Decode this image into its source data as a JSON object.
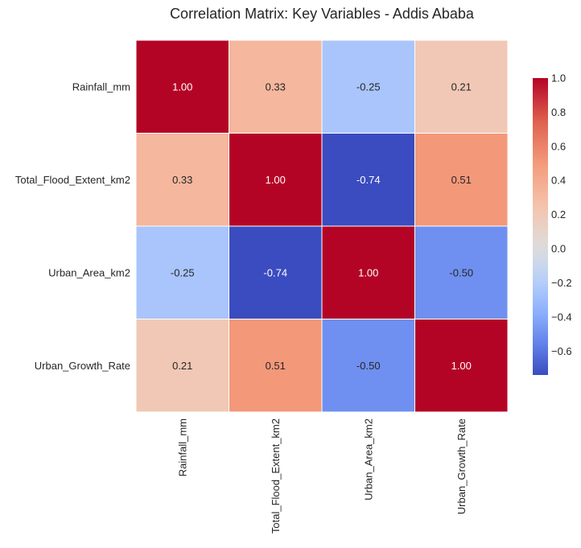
{
  "chart_data": {
    "type": "heatmap",
    "title": "Correlation Matrix: Key Variables - Addis Ababa",
    "row_labels": [
      "Rainfall_mm",
      "Total_Flood_Extent_km2",
      "Urban_Area_km2",
      "Urban_Growth_Rate"
    ],
    "col_labels": [
      "Rainfall_mm",
      "Total_Flood_Extent_km2",
      "Urban_Area_km2",
      "Urban_Growth_Rate"
    ],
    "values": [
      [
        1.0,
        0.33,
        -0.25,
        0.21
      ],
      [
        0.33,
        1.0,
        -0.74,
        0.51
      ],
      [
        -0.25,
        -0.74,
        1.0,
        -0.5
      ],
      [
        0.21,
        0.51,
        -0.5,
        1.0
      ]
    ],
    "cell_labels": [
      [
        "1.00",
        "0.33",
        "-0.25",
        "0.21"
      ],
      [
        "0.33",
        "1.00",
        "-0.74",
        "0.51"
      ],
      [
        "-0.25",
        "-0.74",
        "1.00",
        "-0.50"
      ],
      [
        "0.21",
        "0.51",
        "-0.50",
        "1.00"
      ]
    ],
    "colormap": "coolwarm",
    "colorbar": {
      "range": [
        -0.74,
        1.0
      ],
      "ticks": [
        1.0,
        0.8,
        0.6,
        0.4,
        0.2,
        0.0,
        -0.2,
        -0.4,
        -0.6
      ],
      "tick_labels": [
        "1.0",
        "0.8",
        "0.6",
        "0.4",
        "0.2",
        "0.0",
        "−0.2",
        "−0.4",
        "−0.6"
      ]
    }
  }
}
